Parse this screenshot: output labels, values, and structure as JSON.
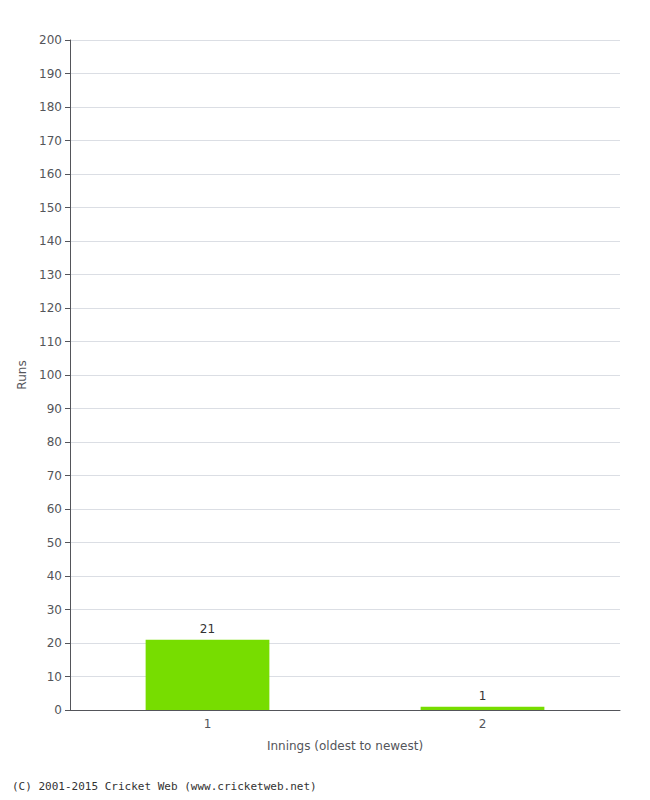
{
  "chart_data": {
    "type": "bar",
    "categories": [
      "1",
      "2"
    ],
    "values": [
      21,
      1
    ],
    "color": "#77dd00",
    "xlabel": "Innings (oldest to newest)",
    "ylabel": "Runs",
    "ylim": [
      0,
      200
    ],
    "yticks": [
      0,
      10,
      20,
      30,
      40,
      50,
      60,
      70,
      80,
      90,
      100,
      110,
      120,
      130,
      140,
      150,
      160,
      170,
      180,
      190,
      200
    ],
    "grid": true,
    "data_labels": true,
    "annotations": [
      "(C) 2001-2015 Cricket Web (www.cricketweb.net)"
    ]
  }
}
